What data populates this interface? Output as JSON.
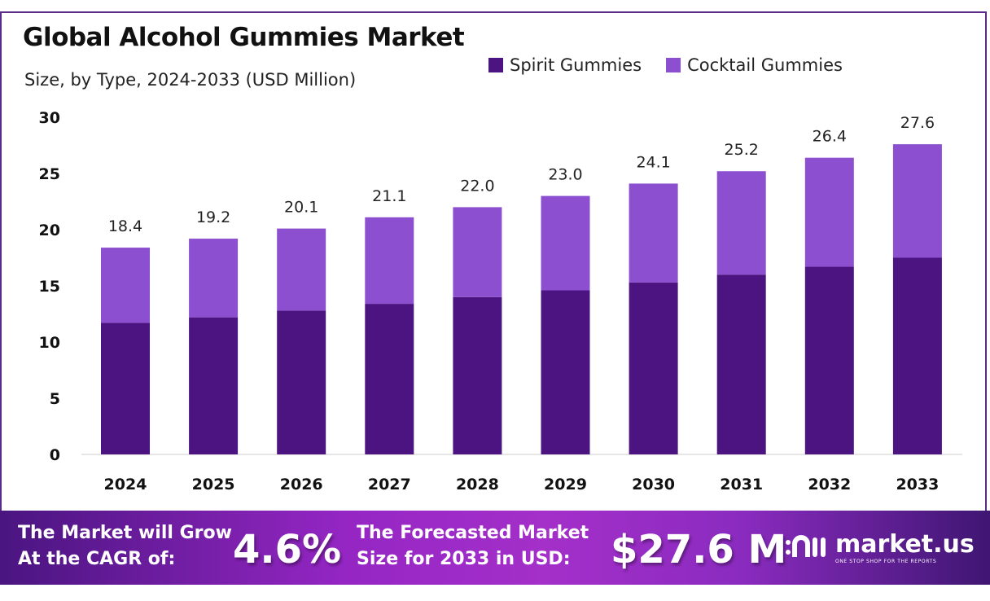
{
  "chart_data": {
    "type": "bar",
    "stacked": true,
    "title": "Global Alcohol Gummies Market",
    "subtitle": "Size, by Type, 2024-2033 (USD Million)",
    "categories": [
      "2024",
      "2025",
      "2026",
      "2027",
      "2028",
      "2029",
      "2030",
      "2031",
      "2032",
      "2033"
    ],
    "series": [
      {
        "name": "Spirit Gummies",
        "color": "#4b1480",
        "values": [
          11.7,
          12.2,
          12.8,
          13.4,
          14.0,
          14.6,
          15.3,
          16.0,
          16.7,
          17.5
        ]
      },
      {
        "name": "Cocktail Gummies",
        "color": "#8b4fcf",
        "values": [
          6.7,
          7.0,
          7.3,
          7.7,
          8.0,
          8.4,
          8.8,
          9.2,
          9.7,
          10.1
        ]
      }
    ],
    "totals": [
      "18.4",
      "19.2",
      "20.1",
      "21.1",
      "22.0",
      "23.0",
      "24.1",
      "25.2",
      "26.4",
      "27.6"
    ],
    "yticks": [
      "0",
      "5",
      "10",
      "15",
      "20",
      "25",
      "30"
    ],
    "ylim": [
      0,
      30
    ],
    "grid": false,
    "legend": "top-right"
  },
  "footer": {
    "cagr_label_1": "The Market will Grow",
    "cagr_label_2": "At the CAGR of:",
    "cagr_value": "4.6%",
    "forecast_label_1": "The Forecasted Market",
    "forecast_label_2": "Size for 2033 in USD:",
    "forecast_value": "$27.6 M",
    "brand": "market.us",
    "brand_tagline": "ONE STOP SHOP FOR THE REPORTS"
  }
}
